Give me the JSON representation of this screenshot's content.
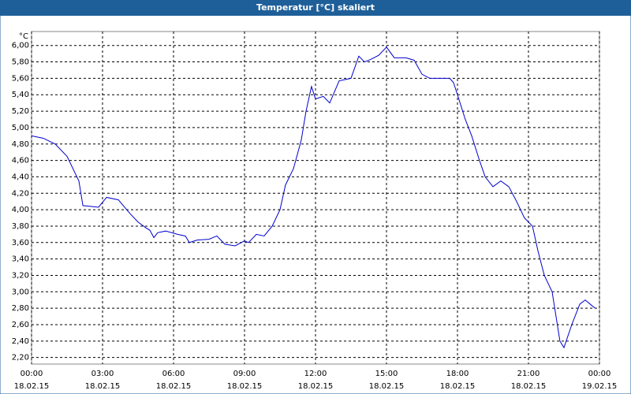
{
  "chart_data": {
    "type": "line",
    "title": "Temperatur [°C] skaliert",
    "y_unit": "°C",
    "x": [
      0,
      0.5,
      1,
      1.5,
      2,
      2.17,
      2.83,
      3.17,
      3.67,
      4.17,
      4.5,
      4.83,
      5,
      5.17,
      5.33,
      5.67,
      6.17,
      6.5,
      6.67,
      7,
      7.5,
      7.83,
      8.17,
      8.6,
      9,
      9.17,
      9.5,
      9.83,
      10.17,
      10.5,
      10.73,
      11.07,
      11.4,
      11.6,
      11.83,
      12,
      12.33,
      12.6,
      13,
      13.5,
      13.83,
      14.07,
      14.33,
      14.67,
      15,
      15.33,
      15.83,
      16.17,
      16.5,
      16.83,
      17.33,
      17.67,
      17.83,
      18,
      18.33,
      18.6,
      18.93,
      19.17,
      19.5,
      19.83,
      20.17,
      20.5,
      20.83,
      21.17,
      21.4,
      21.67,
      22,
      22.33,
      22.5,
      22.83,
      23.17,
      23.4,
      23.73,
      23.83
    ],
    "series": [
      {
        "name": "Temperatur",
        "color": "#0000cc",
        "values": [
          4.9,
          4.87,
          4.8,
          4.65,
          4.35,
          4.05,
          4.03,
          4.15,
          4.12,
          3.95,
          3.85,
          3.78,
          3.75,
          3.66,
          3.72,
          3.74,
          3.7,
          3.68,
          3.6,
          3.63,
          3.64,
          3.68,
          3.58,
          3.56,
          3.62,
          3.6,
          3.7,
          3.68,
          3.8,
          4.0,
          4.3,
          4.5,
          4.85,
          5.2,
          5.5,
          5.35,
          5.38,
          5.3,
          5.57,
          5.6,
          5.87,
          5.8,
          5.83,
          5.88,
          5.98,
          5.85,
          5.85,
          5.82,
          5.65,
          5.6,
          5.6,
          5.6,
          5.55,
          5.4,
          5.1,
          4.9,
          4.6,
          4.4,
          4.28,
          4.35,
          4.28,
          4.1,
          3.9,
          3.8,
          3.5,
          3.2,
          3.0,
          2.4,
          2.32,
          2.6,
          2.85,
          2.9,
          2.82,
          2.8
        ]
      }
    ],
    "xlim": [
      0,
      24
    ],
    "xticks": [
      {
        "value": 0,
        "label": "00:00",
        "date": "18.02.15"
      },
      {
        "value": 3,
        "label": "03:00",
        "date": "18.02.15"
      },
      {
        "value": 6,
        "label": "06:00",
        "date": "18.02.15"
      },
      {
        "value": 9,
        "label": "09:00",
        "date": "18.02.15"
      },
      {
        "value": 12,
        "label": "12:00",
        "date": "18.02.15"
      },
      {
        "value": 15,
        "label": "15:00",
        "date": "18.02.15"
      },
      {
        "value": 18,
        "label": "18:00",
        "date": "18.02.15"
      },
      {
        "value": 21,
        "label": "21:00",
        "date": "18.02.15"
      },
      {
        "value": 24,
        "label": "00:00",
        "date": "19.02.15"
      }
    ],
    "ylim": [
      2.12,
      6.17
    ],
    "yticks": [
      {
        "value": 2.2,
        "label": "2,20"
      },
      {
        "value": 2.4,
        "label": "2,40"
      },
      {
        "value": 2.6,
        "label": "2,60"
      },
      {
        "value": 2.8,
        "label": "2,80"
      },
      {
        "value": 3.0,
        "label": "3,00"
      },
      {
        "value": 3.2,
        "label": "3,20"
      },
      {
        "value": 3.4,
        "label": "3,40"
      },
      {
        "value": 3.6,
        "label": "3,60"
      },
      {
        "value": 3.8,
        "label": "3,80"
      },
      {
        "value": 4.0,
        "label": "4,00"
      },
      {
        "value": 4.2,
        "label": "4,20"
      },
      {
        "value": 4.4,
        "label": "4,40"
      },
      {
        "value": 4.6,
        "label": "4,60"
      },
      {
        "value": 4.8,
        "label": "4,80"
      },
      {
        "value": 5.0,
        "label": "5,00"
      },
      {
        "value": 5.2,
        "label": "5,20"
      },
      {
        "value": 5.4,
        "label": "5,40"
      },
      {
        "value": 5.6,
        "label": "5,60"
      },
      {
        "value": 5.8,
        "label": "5,80"
      },
      {
        "value": 6.0,
        "label": "6,00"
      }
    ],
    "grid": true
  }
}
